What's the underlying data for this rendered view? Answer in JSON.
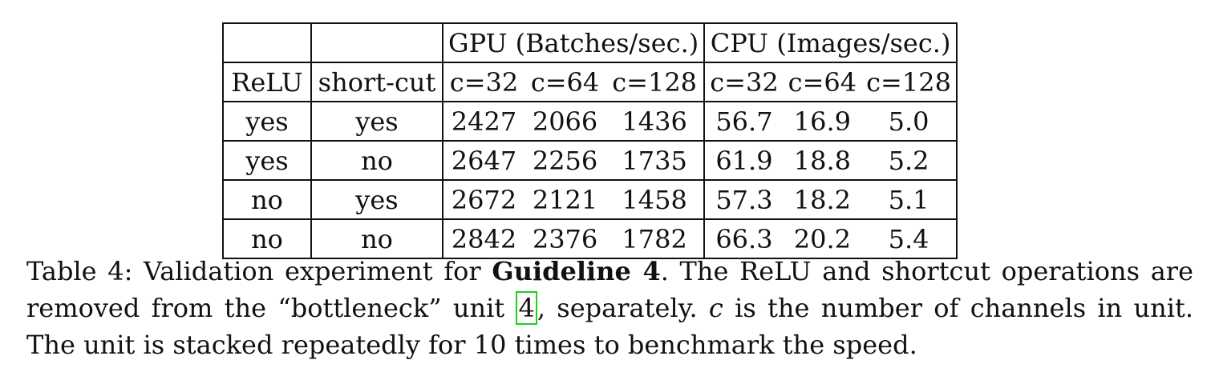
{
  "table": {
    "group_headers": {
      "gpu": "GPU (Batches/sec.)",
      "cpu": "CPU (Images/sec.)"
    },
    "col_headers": [
      "ReLU",
      "short-cut",
      "c=32",
      "c=64",
      "c=128",
      "c=32",
      "c=64",
      "c=128"
    ],
    "rows": [
      [
        "yes",
        "yes",
        "2427",
        "2066",
        "1436",
        "56.7",
        "16.9",
        "5.0"
      ],
      [
        "yes",
        "no",
        "2647",
        "2256",
        "1735",
        "61.9",
        "18.8",
        "5.2"
      ],
      [
        "no",
        "yes",
        "2672",
        "2121",
        "1458",
        "57.3",
        "18.2",
        "5.1"
      ],
      [
        "no",
        "no",
        "2842",
        "2376",
        "1782",
        "66.3",
        "20.2",
        "5.4"
      ]
    ]
  },
  "caption": {
    "prefix": "Table 4: Validation experiment for ",
    "bold": "Guideline 4",
    "mid1": ". The ReLU and shortcut operations are removed from the “bottleneck” unit ",
    "cite": "4",
    "mid2": ", separately. ",
    "var": "c",
    "suffix": " is the number of channels in unit. The unit is stacked repeatedly for 10 times to benchmark the speed."
  }
}
